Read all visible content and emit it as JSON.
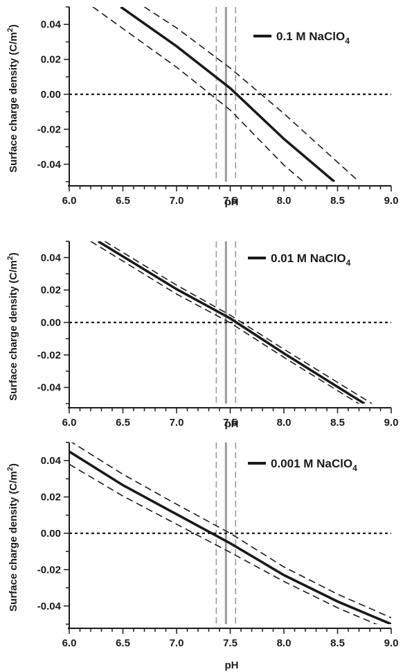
{
  "figure": {
    "xlabel": "pH",
    "ylabel": "Surface charge density (C/m",
    "ylabel_sup": "2",
    "ylabel_close": ")"
  },
  "chart_data": [
    {
      "type": "line",
      "panel": "top",
      "legend": {
        "label": "0.1 M NaClO",
        "subscript": "4",
        "placement": "top-right"
      },
      "xlabel": "pH",
      "ylabel": "Surface charge density (C/m2)",
      "xlim": [
        6.0,
        9.0
      ],
      "ylim": [
        -0.05,
        0.05
      ],
      "xticks": [
        "6.0",
        "6.5",
        "7.0",
        "7.5",
        "8.0",
        "8.5",
        "9.0"
      ],
      "yticks": [
        "0.04",
        "0.02",
        "0.00",
        "-0.02",
        "-0.04"
      ],
      "zero_line": 0.0,
      "vertical_solid": 7.46,
      "vertical_dashed": [
        7.37,
        7.55
      ],
      "series": [
        {
          "style": "solid",
          "x": [
            6.48,
            7.0,
            7.5,
            8.0,
            8.47
          ],
          "y": [
            0.05,
            0.0275,
            0.0035,
            -0.0255,
            -0.05
          ]
        },
        {
          "style": "dashed",
          "x": [
            6.22,
            7.0,
            7.5,
            8.0,
            8.22
          ],
          "y": [
            0.05,
            0.0155,
            -0.009,
            -0.0405,
            -0.052
          ]
        },
        {
          "style": "dashed",
          "x": [
            6.7,
            7.0,
            7.5,
            8.0,
            8.7
          ],
          "y": [
            0.05,
            0.038,
            0.015,
            -0.011,
            -0.05
          ]
        }
      ]
    },
    {
      "type": "line",
      "panel": "middle",
      "legend": {
        "label": "0.01 M NaClO",
        "subscript": "4",
        "placement": "top-right"
      },
      "xlabel": "pH",
      "ylabel": "Surface charge density (C/m2)",
      "xlim": [
        6.0,
        9.0
      ],
      "ylim": [
        -0.05,
        0.05
      ],
      "xticks": [
        "6.0",
        "6.5",
        "7.0",
        "7.5",
        "8.0",
        "8.5",
        "9.0"
      ],
      "yticks": [
        "0.04",
        "0.02",
        "0.00",
        "-0.02",
        "-0.04"
      ],
      "zero_line": 0.0,
      "vertical_solid": 7.46,
      "vertical_dashed": [
        7.37,
        7.55
      ],
      "series": [
        {
          "style": "solid",
          "x": [
            6.27,
            7.0,
            7.5,
            8.0,
            8.75
          ],
          "y": [
            0.05,
            0.0205,
            0.0025,
            -0.019,
            -0.05
          ]
        },
        {
          "style": "dashed",
          "x": [
            6.2,
            7.0,
            7.5,
            8.0,
            8.72
          ],
          "y": [
            0.05,
            0.0175,
            -0.0002,
            -0.0215,
            -0.051
          ]
        },
        {
          "style": "dashed",
          "x": [
            6.33,
            7.0,
            7.5,
            8.0,
            8.82
          ],
          "y": [
            0.05,
            0.023,
            0.0045,
            -0.0165,
            -0.05
          ]
        }
      ]
    },
    {
      "type": "line",
      "panel": "bottom",
      "legend": {
        "label": "0.001 M NaClO",
        "subscript": "4",
        "placement": "top-right"
      },
      "xlabel": "pH",
      "ylabel": "Surface charge density (C/m2)",
      "xlim": [
        6.0,
        9.0
      ],
      "ylim": [
        -0.05,
        0.05
      ],
      "xticks": [
        "6.0",
        "6.5",
        "7.0",
        "7.5",
        "8.0",
        "8.5",
        "9.0"
      ],
      "yticks": [
        "0.04",
        "0.02",
        "0.00",
        "-0.02",
        "-0.04"
      ],
      "zero_line": 0.0,
      "vertical_solid": 7.46,
      "vertical_dashed": [
        7.37,
        7.55
      ],
      "series": [
        {
          "style": "solid",
          "x": [
            6.0,
            6.5,
            7.0,
            7.5,
            8.0,
            8.5,
            9.0
          ],
          "y": [
            0.045,
            0.0265,
            0.0105,
            -0.0055,
            -0.023,
            -0.0375,
            -0.05
          ]
        },
        {
          "style": "dashed",
          "x": [
            6.0,
            6.5,
            7.0,
            7.5,
            8.0,
            8.5,
            9.0
          ],
          "y": [
            0.038,
            0.0205,
            0.005,
            -0.0105,
            -0.0265,
            -0.041,
            -0.0535
          ]
        },
        {
          "style": "dashed",
          "x": [
            6.0,
            6.5,
            7.0,
            7.5,
            8.0,
            8.5,
            9.0
          ],
          "y": [
            0.051,
            0.0325,
            0.016,
            0.0,
            -0.0185,
            -0.0335,
            -0.0465
          ]
        }
      ]
    }
  ]
}
